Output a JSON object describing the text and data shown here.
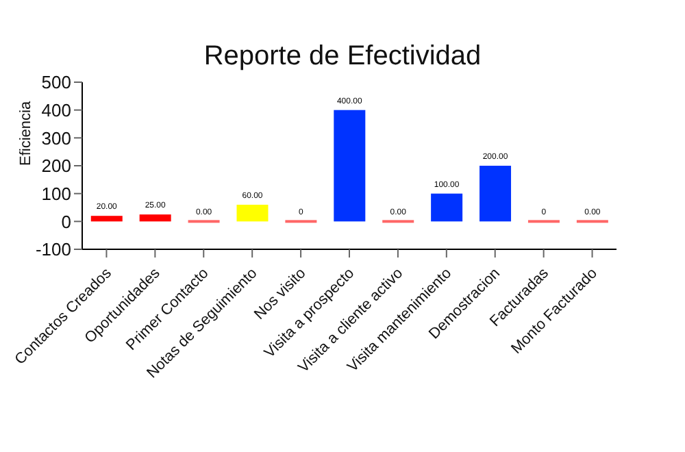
{
  "chart_data": {
    "type": "bar",
    "title": "Reporte de Efectividad",
    "ylabel": "Eficiencia",
    "categories": [
      "Contactos Creados",
      "Oportunidades",
      "Primer Contacto",
      "Notas de Seguimiento",
      "Nos visito",
      "Visita a prospecto",
      "Visita a cliente activo",
      "Visita mantenimiento",
      "Demostracion",
      "Facturadas",
      "Monto Facturado"
    ],
    "values": [
      20,
      25,
      0,
      60,
      0,
      400,
      0,
      100,
      200,
      0,
      0
    ],
    "colors": [
      "#ff0000",
      "#ff0000",
      "#ff6666",
      "#ffff00",
      "#ff6666",
      "#0033ff",
      "#ff6666",
      "#0033ff",
      "#0033ff",
      "#ff6666",
      "#ff6666"
    ],
    "value_labels": [
      "20.00",
      "25.00",
      "0.00",
      "60.00",
      "0",
      "400.00",
      "0.00",
      "100.00",
      "200.00",
      "0",
      "0.00"
    ],
    "ylim": [
      -100,
      500
    ],
    "yticks": [
      -100,
      0,
      100,
      200,
      300,
      400,
      500
    ],
    "grid": false
  }
}
